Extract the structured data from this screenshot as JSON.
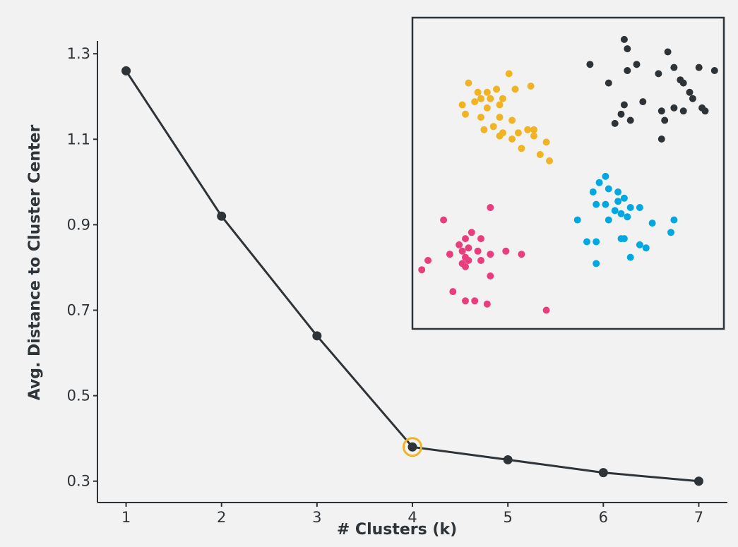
{
  "chart_data": [
    {
      "type": "line",
      "title": "",
      "xlabel": "# Clusters (k)",
      "ylabel": "Avg. Distance to Cluster Center",
      "x": [
        1,
        2,
        3,
        4,
        5,
        6,
        7
      ],
      "y": [
        1.26,
        0.92,
        0.64,
        0.38,
        0.35,
        0.32,
        0.3
      ],
      "xlim": [
        0.7,
        7.3
      ],
      "ylim": [
        0.25,
        1.33
      ],
      "xticks": [
        "1",
        "2",
        "3",
        "4",
        "5",
        "6",
        "7"
      ],
      "yticks": [
        "0.3",
        "0.5",
        "0.7",
        "0.9",
        "1.1",
        "1.3"
      ],
      "ytick_values": [
        0.3,
        0.5,
        0.7,
        0.9,
        1.1,
        1.3
      ],
      "highlight": {
        "x": 4,
        "y": 0.38,
        "color": "#f0b323"
      },
      "line_color": "#2e3338",
      "grid": false,
      "legend": "none"
    },
    {
      "type": "scatter",
      "title": "",
      "xlabel": "",
      "ylabel": "",
      "xlim": [
        0,
        10
      ],
      "ylim": [
        0,
        10
      ],
      "axes_visible": false,
      "series": [
        {
          "color": "#f0b323",
          "points": [
            [
              1.8,
              7.9
            ],
            [
              3.1,
              8.2
            ],
            [
              2.1,
              7.6
            ],
            [
              2.4,
              7.6
            ],
            [
              2.7,
              7.7
            ],
            [
              3.3,
              7.7
            ],
            [
              3.8,
              7.8
            ],
            [
              2.2,
              7.4
            ],
            [
              2.5,
              7.4
            ],
            [
              2.9,
              7.4
            ],
            [
              1.6,
              7.2
            ],
            [
              2.0,
              7.3
            ],
            [
              2.4,
              7.1
            ],
            [
              2.8,
              7.2
            ],
            [
              1.7,
              6.9
            ],
            [
              2.2,
              6.8
            ],
            [
              2.8,
              6.8
            ],
            [
              3.2,
              6.7
            ],
            [
              2.6,
              6.5
            ],
            [
              2.3,
              6.4
            ],
            [
              2.9,
              6.3
            ],
            [
              3.4,
              6.3
            ],
            [
              3.7,
              6.4
            ],
            [
              3.9,
              6.4
            ],
            [
              2.8,
              6.2
            ],
            [
              3.2,
              6.1
            ],
            [
              3.9,
              6.2
            ],
            [
              4.3,
              6.0
            ],
            [
              3.5,
              5.8
            ],
            [
              4.1,
              5.6
            ],
            [
              4.4,
              5.4
            ]
          ],
          "name": ""
        },
        {
          "color": "#2e3338",
          "points": [
            [
              6.8,
              9.3
            ],
            [
              6.9,
              9.0
            ],
            [
              8.2,
              8.9
            ],
            [
              5.7,
              8.5
            ],
            [
              7.2,
              8.5
            ],
            [
              6.9,
              8.3
            ],
            [
              7.9,
              8.2
            ],
            [
              8.4,
              8.4
            ],
            [
              9.2,
              8.4
            ],
            [
              9.7,
              8.3
            ],
            [
              8.6,
              8.0
            ],
            [
              8.7,
              7.9
            ],
            [
              6.3,
              7.9
            ],
            [
              8.9,
              7.6
            ],
            [
              9.0,
              7.4
            ],
            [
              6.8,
              7.2
            ],
            [
              7.4,
              7.3
            ],
            [
              8.0,
              7.0
            ],
            [
              8.4,
              7.1
            ],
            [
              8.7,
              7.0
            ],
            [
              9.3,
              7.1
            ],
            [
              9.4,
              7.0
            ],
            [
              6.7,
              6.9
            ],
            [
              7.0,
              6.7
            ],
            [
              6.5,
              6.6
            ],
            [
              8.1,
              6.7
            ],
            [
              8.0,
              6.1
            ]
          ],
          "name": ""
        },
        {
          "color": "#00a8e1",
          "points": [
            [
              6.2,
              4.9
            ],
            [
              6.0,
              4.7
            ],
            [
              5.8,
              4.4
            ],
            [
              6.3,
              4.5
            ],
            [
              6.6,
              4.4
            ],
            [
              5.9,
              4.0
            ],
            [
              6.2,
              4.0
            ],
            [
              6.6,
              4.1
            ],
            [
              6.8,
              4.2
            ],
            [
              7.0,
              3.9
            ],
            [
              7.3,
              3.9
            ],
            [
              6.5,
              3.8
            ],
            [
              6.7,
              3.7
            ],
            [
              6.9,
              3.6
            ],
            [
              5.3,
              3.5
            ],
            [
              6.3,
              3.5
            ],
            [
              7.7,
              3.4
            ],
            [
              8.4,
              3.5
            ],
            [
              6.7,
              2.9
            ],
            [
              6.8,
              2.9
            ],
            [
              8.3,
              3.1
            ],
            [
              5.6,
              2.8
            ],
            [
              5.9,
              2.8
            ],
            [
              7.3,
              2.7
            ],
            [
              7.5,
              2.6
            ],
            [
              7.0,
              2.3
            ],
            [
              5.9,
              2.1
            ]
          ],
          "name": ""
        },
        {
          "color": "#e83e7d",
          "points": [
            [
              2.5,
              3.9
            ],
            [
              1.0,
              3.5
            ],
            [
              1.9,
              3.1
            ],
            [
              1.7,
              2.9
            ],
            [
              2.2,
              2.9
            ],
            [
              1.5,
              2.7
            ],
            [
              1.8,
              2.6
            ],
            [
              2.1,
              2.5
            ],
            [
              1.2,
              2.4
            ],
            [
              1.6,
              2.5
            ],
            [
              2.5,
              2.4
            ],
            [
              3.0,
              2.5
            ],
            [
              3.5,
              2.4
            ],
            [
              1.7,
              2.3
            ],
            [
              1.8,
              2.2
            ],
            [
              2.2,
              2.2
            ],
            [
              0.5,
              2.2
            ],
            [
              1.6,
              2.1
            ],
            [
              1.7,
              2.0
            ],
            [
              0.3,
              1.9
            ],
            [
              2.5,
              1.7
            ],
            [
              1.3,
              1.2
            ],
            [
              1.7,
              0.9
            ],
            [
              2.0,
              0.9
            ],
            [
              2.4,
              0.8
            ],
            [
              4.3,
              0.6
            ]
          ],
          "name": ""
        }
      ],
      "frame_color": "#2e3338"
    }
  ]
}
